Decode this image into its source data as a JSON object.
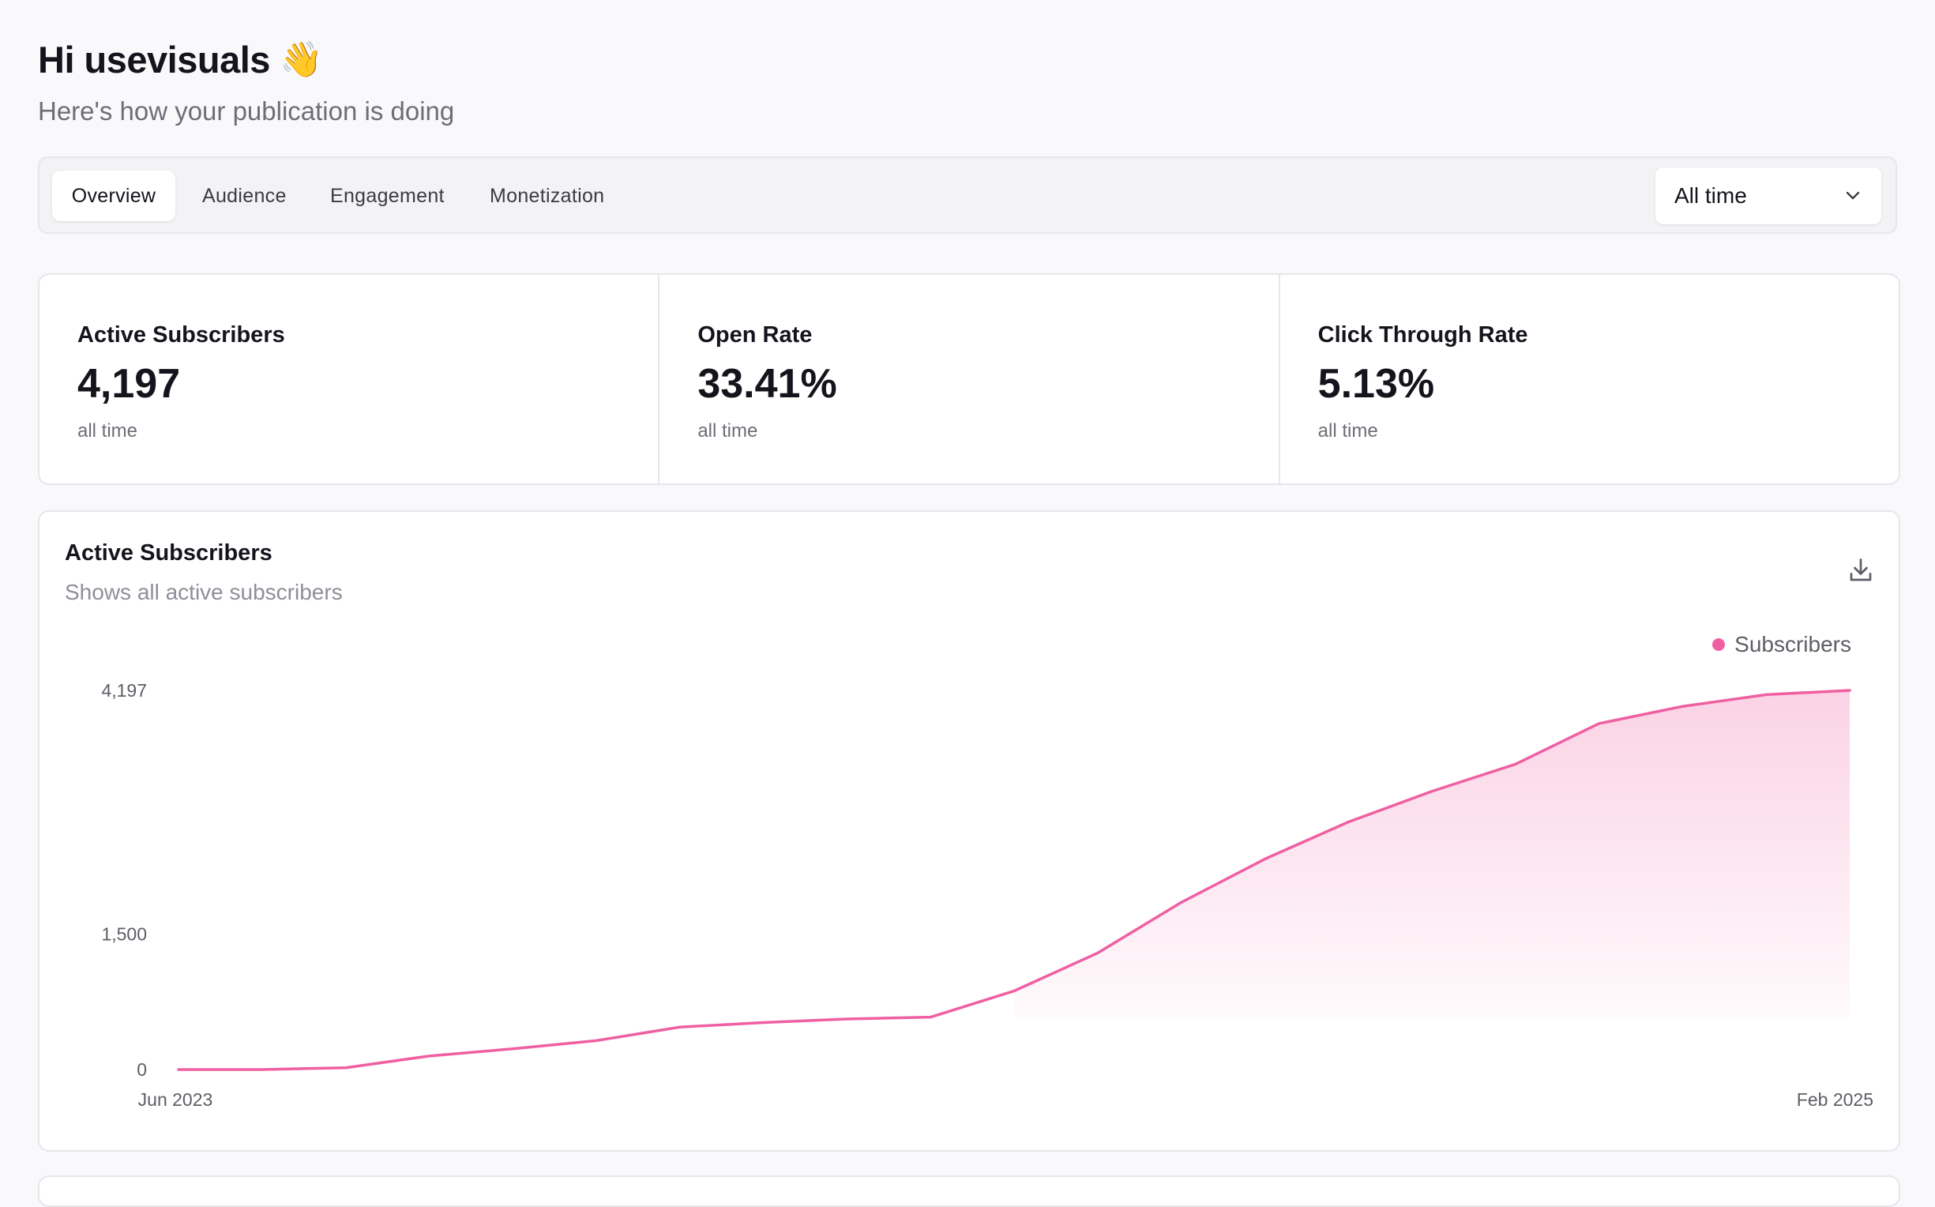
{
  "header": {
    "greeting": "Hi usevisuals",
    "wave_emoji": "👋",
    "subtitle": "Here's how your publication is doing"
  },
  "tabs": [
    {
      "label": "Overview",
      "active": true
    },
    {
      "label": "Audience",
      "active": false
    },
    {
      "label": "Engagement",
      "active": false
    },
    {
      "label": "Monetization",
      "active": false
    }
  ],
  "range_select": {
    "selected": "All time",
    "icon": "chevron-down-icon"
  },
  "stats": [
    {
      "title": "Active Subscribers",
      "value": "4,197",
      "period": "all time"
    },
    {
      "title": "Open Rate",
      "value": "33.41%",
      "period": "all time"
    },
    {
      "title": "Click Through Rate",
      "value": "5.13%",
      "period": "all time"
    }
  ],
  "chart_card": {
    "title": "Active Subscribers",
    "subtitle": "Shows all active subscribers",
    "download_icon": "download-icon"
  },
  "colors": {
    "accent": "#ef5fa1",
    "background": "#f9f9fc",
    "border": "#e6e6eb"
  },
  "chart_data": {
    "type": "area",
    "x_labels": [
      "Jun 2023",
      "Feb 2025"
    ],
    "y_ticks": [
      {
        "value": 0,
        "label": "0"
      },
      {
        "value": 1500,
        "label": "1,500"
      },
      {
        "value": 4197,
        "label": "4,197"
      }
    ],
    "ylim": [
      0,
      4197
    ],
    "series": [
      {
        "name": "Subscribers",
        "color": "#ef5fa1",
        "values": [
          0,
          0,
          20,
          150,
          230,
          320,
          470,
          520,
          560,
          580,
          870,
          1290,
          1850,
          2330,
          2740,
          3080,
          3380,
          3830,
          4020,
          4150,
          4197
        ]
      }
    ],
    "gradient_fill_from_index": 10,
    "legend": "top-right",
    "grid": false
  }
}
